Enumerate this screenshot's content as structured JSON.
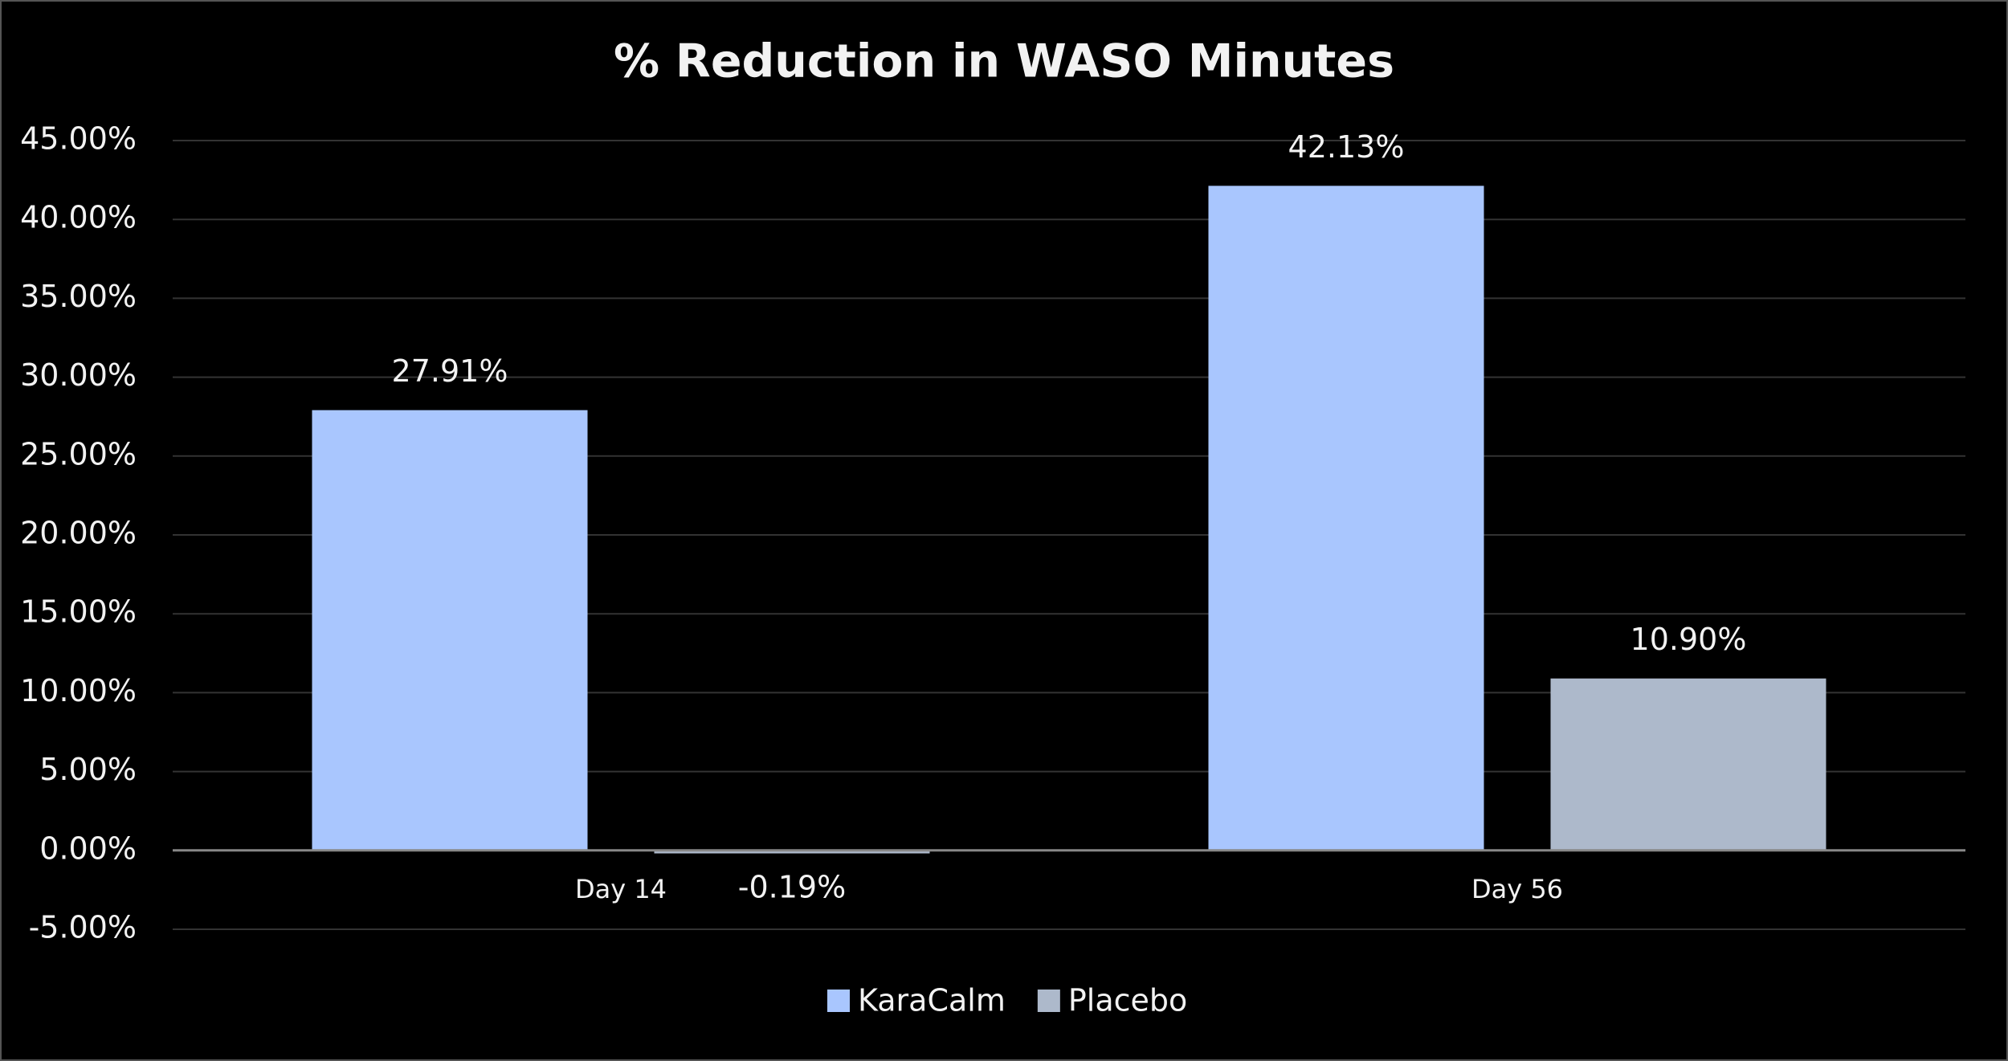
{
  "chart_data": {
    "type": "bar",
    "title": "% Reduction in WASO Minutes",
    "categories": [
      "Day 14",
      "Day 56"
    ],
    "series": [
      {
        "name": "KaraCalm",
        "color": "#a9c6fe",
        "values": [
          27.91,
          42.13
        ],
        "value_labels": [
          "27.91%",
          "42.13%"
        ]
      },
      {
        "name": "Placebo",
        "color": "#adb9cb",
        "values": [
          -0.19,
          10.9
        ],
        "value_labels": [
          "-0.19%",
          "10.90%"
        ]
      }
    ],
    "ylim": [
      -5,
      45
    ],
    "yticks": [
      {
        "value": -5,
        "label": "-5.00%"
      },
      {
        "value": 0,
        "label": "0.00%"
      },
      {
        "value": 5,
        "label": "5.00%"
      },
      {
        "value": 10,
        "label": "10.00%"
      },
      {
        "value": 15,
        "label": "15.00%"
      },
      {
        "value": 20,
        "label": "20.00%"
      },
      {
        "value": 25,
        "label": "25.00%"
      },
      {
        "value": 30,
        "label": "30.00%"
      },
      {
        "value": 35,
        "label": "35.00%"
      },
      {
        "value": 40,
        "label": "40.00%"
      },
      {
        "value": 45,
        "label": "45.00%"
      }
    ],
    "grid": true,
    "legend": "bottom"
  }
}
